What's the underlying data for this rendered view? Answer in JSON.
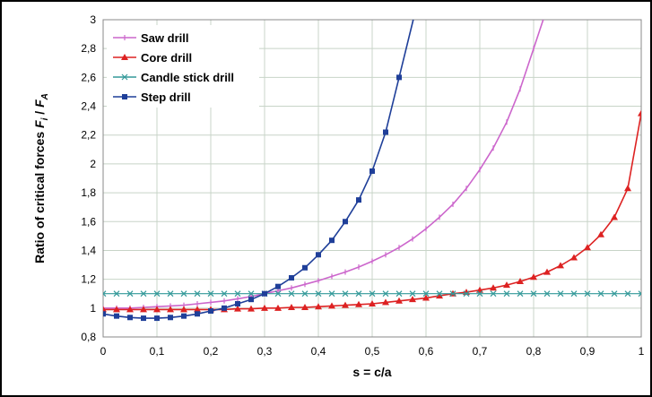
{
  "chart_data": {
    "type": "line",
    "title": "",
    "xlabel": "s = c/a",
    "ylabel": "Ratio of critical forces",
    "ylabel_symbol": "F",
    "ylabel_sub_1": "i",
    "ylabel_sub_2": "A",
    "ylabel_sep": " / ",
    "xlim": [
      0,
      1
    ],
    "ylim": [
      0.8,
      3
    ],
    "grid": true,
    "legend_position": "top-left",
    "x_ticks": [
      "0",
      "0,1",
      "0,2",
      "0,3",
      "0,4",
      "0,5",
      "0,6",
      "0,7",
      "0,8",
      "0,9",
      "1"
    ],
    "y_ticks": [
      "0,8",
      "1",
      "1,2",
      "1,4",
      "1,6",
      "1,8",
      "2",
      "2,2",
      "2,4",
      "2,6",
      "2,8",
      "3"
    ],
    "x": [
      0,
      0.025,
      0.05,
      0.075,
      0.1,
      0.125,
      0.15,
      0.175,
      0.2,
      0.225,
      0.25,
      0.275,
      0.3,
      0.325,
      0.35,
      0.375,
      0.4,
      0.425,
      0.45,
      0.475,
      0.5,
      0.525,
      0.55,
      0.575,
      0.6,
      0.625,
      0.65,
      0.675,
      0.7,
      0.725,
      0.75,
      0.775,
      0.8,
      0.825,
      0.85,
      0.875,
      0.9,
      0.925,
      0.95,
      0.975,
      1.0
    ],
    "series": [
      {
        "name": "Saw drill",
        "color": "#cc66cc",
        "marker": "tick",
        "values": [
          1.0,
          1.0,
          1.0,
          1.005,
          1.01,
          1.015,
          1.02,
          1.03,
          1.04,
          1.05,
          1.065,
          1.08,
          1.1,
          1.12,
          1.14,
          1.165,
          1.19,
          1.22,
          1.25,
          1.285,
          1.325,
          1.37,
          1.42,
          1.48,
          1.55,
          1.63,
          1.72,
          1.83,
          1.96,
          2.11,
          2.29,
          2.52,
          2.8,
          null,
          null,
          null,
          null,
          null,
          null,
          null,
          null
        ]
      },
      {
        "name": "Core drill",
        "color": "#dd2222",
        "marker": "triangle",
        "values": [
          0.99,
          0.99,
          0.99,
          0.99,
          0.99,
          0.99,
          0.99,
          0.99,
          0.99,
          0.99,
          0.995,
          0.995,
          1.0,
          1.0,
          1.005,
          1.005,
          1.01,
          1.015,
          1.02,
          1.025,
          1.03,
          1.04,
          1.05,
          1.06,
          1.07,
          1.085,
          1.1,
          1.11,
          1.125,
          1.14,
          1.16,
          1.185,
          1.215,
          1.25,
          1.295,
          1.35,
          1.42,
          1.51,
          1.63,
          1.83,
          2.35
        ]
      },
      {
        "name": "Candle stick drill",
        "color": "#339999",
        "marker": "x",
        "values": [
          1.1,
          1.1,
          1.1,
          1.1,
          1.1,
          1.1,
          1.1,
          1.1,
          1.1,
          1.1,
          1.1,
          1.1,
          1.1,
          1.1,
          1.1,
          1.1,
          1.1,
          1.1,
          1.1,
          1.1,
          1.1,
          1.1,
          1.1,
          1.1,
          1.1,
          1.1,
          1.1,
          1.1,
          1.1,
          1.1,
          1.1,
          1.1,
          1.1,
          1.1,
          1.1,
          1.1,
          1.1,
          1.1,
          1.1,
          1.1,
          1.1
        ]
      },
      {
        "name": "Step drill",
        "color": "#1f3f99",
        "marker": "square",
        "values": [
          0.96,
          0.945,
          0.935,
          0.93,
          0.93,
          0.935,
          0.945,
          0.96,
          0.98,
          1.0,
          1.03,
          1.06,
          1.1,
          1.15,
          1.21,
          1.28,
          1.37,
          1.47,
          1.6,
          1.75,
          1.95,
          2.22,
          2.6,
          null,
          null,
          null,
          null,
          null,
          null,
          null,
          null,
          null,
          null,
          null,
          null,
          null,
          null,
          null,
          null,
          null,
          null
        ]
      }
    ]
  }
}
